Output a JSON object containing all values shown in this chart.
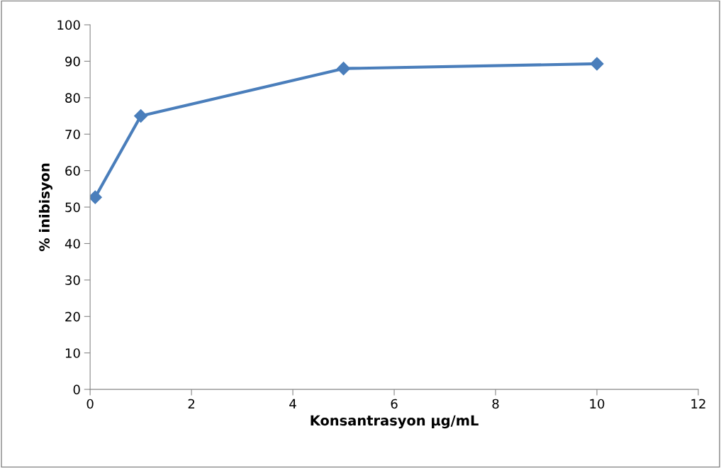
{
  "chart_data": {
    "type": "line",
    "xlabel": "Konsantrasyon µg/mL",
    "ylabel": "% inibisyon",
    "x": [
      0.1,
      1,
      5,
      10
    ],
    "series": [
      {
        "color": "#4a7ebb",
        "values": [
          52.7,
          75,
          88,
          89.3
        ]
      }
    ],
    "xlim": [
      0,
      12
    ],
    "xticks": [
      0,
      2,
      4,
      6,
      8,
      10,
      12
    ],
    "ylim": [
      0,
      100
    ],
    "yticks": [
      0,
      10,
      20,
      30,
      40,
      50,
      60,
      70,
      80,
      90,
      100
    ],
    "grid": false,
    "legend": false,
    "marker": "diamond",
    "line_style": "solid"
  }
}
